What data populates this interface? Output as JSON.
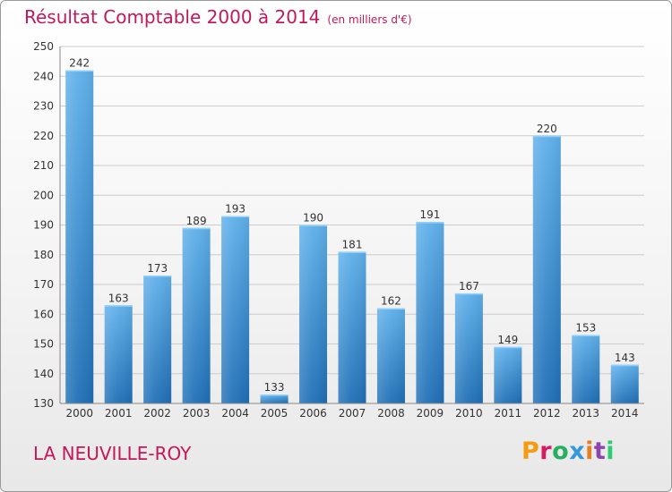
{
  "header": {
    "title": "Résultat Comptable 2000 à 2014",
    "subtitle": "(en milliers d'€)"
  },
  "footer": {
    "town": "LA NEUVILLE-ROY",
    "brand": "Proxiti"
  },
  "colors": {
    "accent": "#c2185b",
    "bar_top": "#5fb0ea",
    "bar_bottom": "#1f6fb6",
    "grid": "#cccccc",
    "brand_letters": [
      "#f39c12",
      "#d81b60",
      "#27ae60",
      "#3498db",
      "#e67e22",
      "#8e44ad",
      "#2ecc71"
    ]
  },
  "chart_data": {
    "type": "bar",
    "title": "Résultat Comptable 2000 à 2014",
    "subtitle": "(en milliers d'€)",
    "xlabel": "",
    "ylabel": "",
    "categories": [
      "2000",
      "2001",
      "2002",
      "2003",
      "2004",
      "2005",
      "2006",
      "2007",
      "2008",
      "2009",
      "2010",
      "2011",
      "2012",
      "2013",
      "2014"
    ],
    "values": [
      242,
      163,
      173,
      189,
      193,
      133,
      190,
      181,
      162,
      191,
      167,
      149,
      220,
      153,
      143
    ],
    "ylim": [
      130,
      250
    ],
    "yticks": [
      130,
      140,
      150,
      160,
      170,
      180,
      190,
      200,
      210,
      220,
      230,
      240,
      250
    ],
    "grid": true,
    "data_labels": true
  }
}
